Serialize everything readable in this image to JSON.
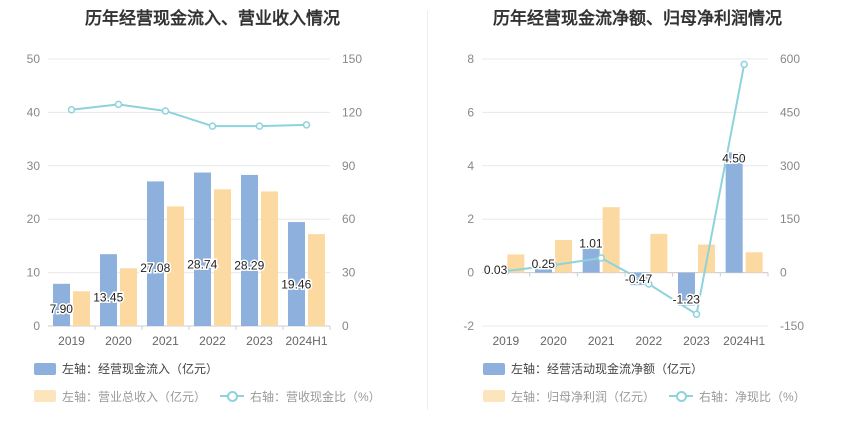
{
  "chart_data": [
    {
      "type": "bar",
      "title": "历年经营现金流入、营业收入情况",
      "categories": [
        "2019",
        "2020",
        "2021",
        "2022",
        "2023",
        "2024H1"
      ],
      "left_axis": {
        "min": 0,
        "max": 50,
        "ticks": [
          "0",
          "10",
          "20",
          "30",
          "40",
          "50"
        ]
      },
      "right_axis": {
        "min": 0,
        "max": 150,
        "ticks": [
          "0",
          "30",
          "60",
          "90",
          "120",
          "150"
        ]
      },
      "series": [
        {
          "name": "经营现金流入",
          "axis": "left",
          "kind": "bar",
          "color": "#8eb0dc",
          "values": [
            7.9,
            13.45,
            27.08,
            28.74,
            28.29,
            19.46
          ],
          "labels": [
            "7.90",
            "13.45",
            "27.08",
            "28.74",
            "28.29",
            "19.46"
          ]
        },
        {
          "name": "营业总收入",
          "axis": "left",
          "kind": "bar",
          "color": "#fcd9a0",
          "values": [
            6.5,
            10.8,
            22.4,
            25.6,
            25.2,
            17.2
          ]
        },
        {
          "name": "营收现金比",
          "axis": "right",
          "kind": "line",
          "color": "#8dd3dc",
          "values": [
            121.5,
            124.5,
            120.8,
            112.3,
            112.3,
            113.0
          ]
        }
      ],
      "legend": [
        {
          "prefix": "左轴：",
          "text": "经营现金流入（亿元）",
          "kind": "bar",
          "color": "#8eb0dc",
          "muted": false
        },
        {
          "prefix": "左轴：",
          "text": "营业总收入（亿元）",
          "kind": "bar",
          "color": "#fce4bd",
          "muted": true
        },
        {
          "prefix": "右轴：",
          "text": "营收现金比（%）",
          "kind": "line",
          "color": "#8dd3dc",
          "muted": true
        }
      ]
    },
    {
      "type": "bar",
      "title": "历年经营现金流净额、归母净利润情况",
      "categories": [
        "2019",
        "2020",
        "2021",
        "2022",
        "2023",
        "2024H1"
      ],
      "left_axis": {
        "min": -2,
        "max": 8,
        "ticks": [
          "-2",
          "0",
          "2",
          "4",
          "6",
          "8"
        ]
      },
      "right_axis": {
        "min": -150,
        "max": 600,
        "ticks": [
          "-150",
          "0",
          "150",
          "300",
          "450",
          "600"
        ]
      },
      "series": [
        {
          "name": "经营活动现金流净额",
          "axis": "left",
          "kind": "bar",
          "color": "#8eb0dc",
          "values": [
            0.03,
            0.25,
            1.01,
            -0.47,
            -1.23,
            4.5
          ],
          "labels": [
            "0.03",
            "0.25",
            "1.01",
            "-0.47",
            "-1.23",
            "4.50"
          ]
        },
        {
          "name": "归母净利润",
          "axis": "left",
          "kind": "bar",
          "color": "#fcd9a0",
          "values": [
            0.68,
            1.22,
            2.45,
            1.45,
            1.05,
            0.76
          ]
        },
        {
          "name": "净现比",
          "axis": "right",
          "kind": "line",
          "color": "#8dd3dc",
          "values": [
            4,
            21,
            41,
            -32,
            -117,
            585
          ]
        }
      ],
      "legend": [
        {
          "prefix": "左轴：",
          "text": "经营活动现金流净额（亿元）",
          "kind": "bar",
          "color": "#8eb0dc",
          "muted": false
        },
        {
          "prefix": "左轴：",
          "text": "归母净利润（亿元）",
          "kind": "bar",
          "color": "#fce4bd",
          "muted": true
        },
        {
          "prefix": "右轴：",
          "text": "净现比（%）",
          "kind": "line",
          "color": "#8dd3dc",
          "muted": true
        }
      ]
    }
  ]
}
